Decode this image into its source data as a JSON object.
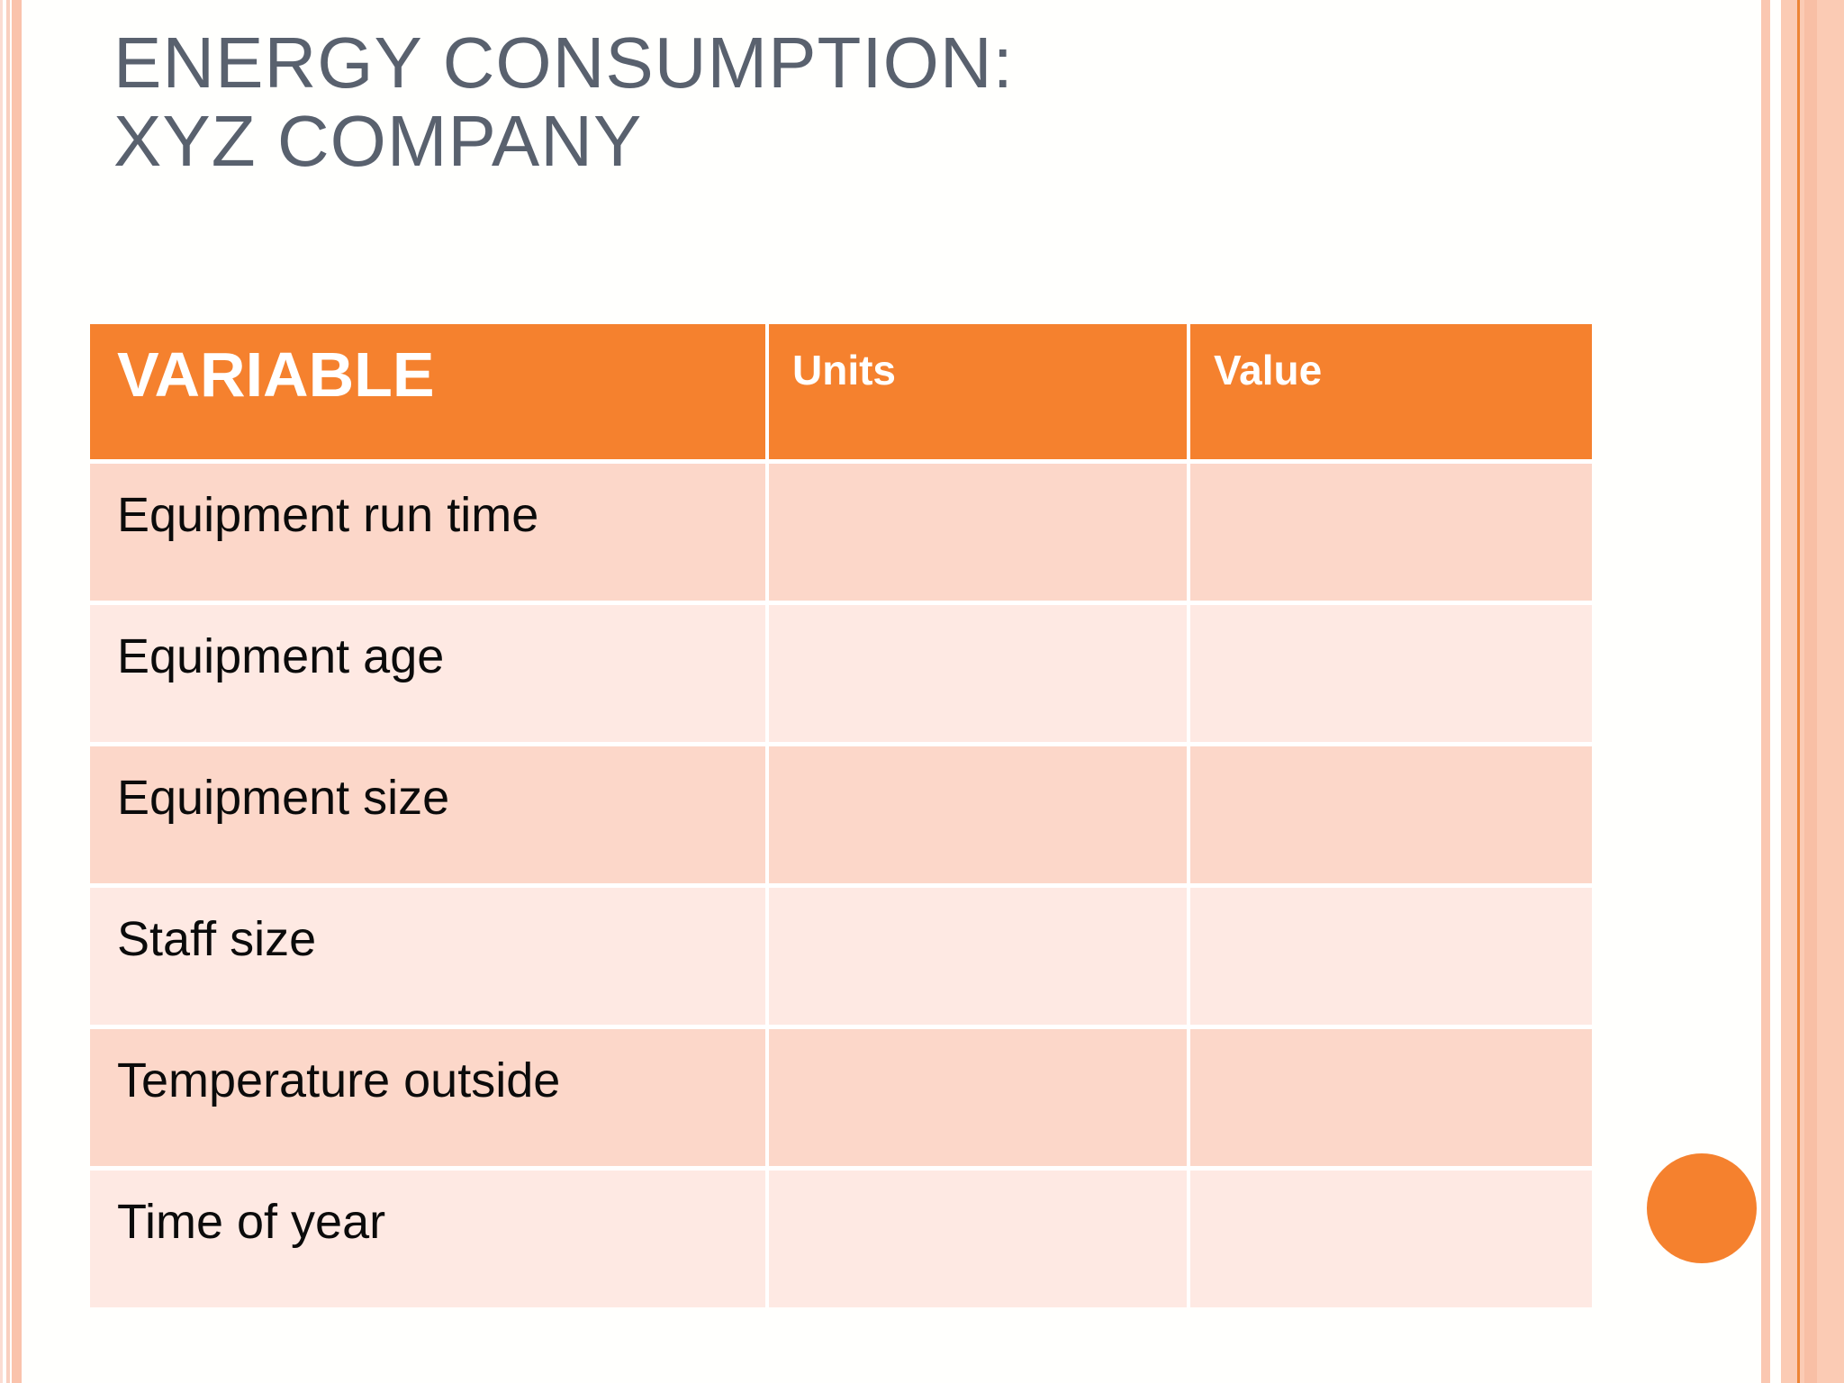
{
  "slide": {
    "title_line1": "ENERGY CONSUMPTION:",
    "title_line2": "XYZ COMPANY"
  },
  "table": {
    "headers": {
      "variable": "VARIABLE",
      "units": "Units",
      "value": "Value"
    },
    "rows": [
      {
        "variable": "Equipment run time",
        "units": "",
        "value": ""
      },
      {
        "variable": "Equipment age",
        "units": "",
        "value": ""
      },
      {
        "variable": "Equipment size",
        "units": "",
        "value": ""
      },
      {
        "variable": "Staff size",
        "units": "",
        "value": ""
      },
      {
        "variable": "Temperature outside",
        "units": "",
        "value": ""
      },
      {
        "variable": "Time of year",
        "units": "",
        "value": ""
      }
    ]
  },
  "colors": {
    "background": "#fffffd",
    "title-text": "#59616e",
    "header-orange": "#f5812e",
    "circle-orange": "#f5812e",
    "row-dark": "#fcd7c9",
    "row-light": "#fee9e3",
    "edge-hairline": "#fbdcd2",
    "left-thin-stripe": "#f9cfbf",
    "left-wide-stripe": "#fac3ac",
    "right-thin-stripe": "#fac7b1",
    "right-band": "#fbcbb4",
    "right-accent-line": "#ed8435",
    "right-shade": "#f8bfa5"
  }
}
